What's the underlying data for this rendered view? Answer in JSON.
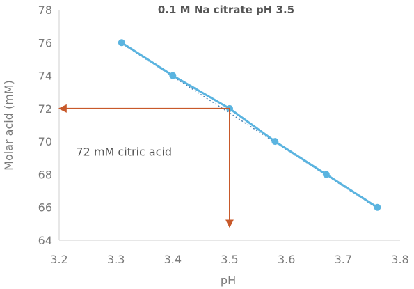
{
  "chart_data": {
    "type": "line",
    "title": "0.1 M Na citrate pH 3.5",
    "xlabel": "pH",
    "ylabel": "Molar acid (mM)",
    "xlim": [
      3.2,
      3.8
    ],
    "ylim": [
      64,
      78
    ],
    "x_ticks": [
      "3.2",
      "3.3",
      "3.4",
      "3.5",
      "3.6",
      "3.7",
      "3.8"
    ],
    "y_ticks": [
      "64",
      "66",
      "68",
      "70",
      "72",
      "74",
      "76",
      "78"
    ],
    "grid": false,
    "legend": "none",
    "series": [
      {
        "x": [
          3.31,
          3.4,
          3.5,
          3.58,
          3.67,
          3.76
        ],
        "y": [
          76,
          74,
          72,
          70,
          68,
          66
        ],
        "color": "#5ab4e0",
        "marker": "circle",
        "trendline": {
          "style": "dotted",
          "x": [
            3.31,
            3.76
          ],
          "y": [
            75.95,
            65.95
          ]
        }
      }
    ],
    "annotations": [
      {
        "text": "72 mM citric acid",
        "x": 3.23,
        "y": 69.4
      }
    ],
    "arrows": [
      {
        "from": [
          3.5,
          72
        ],
        "to": [
          3.2,
          72
        ],
        "color": "#c8592a"
      },
      {
        "from": [
          3.5,
          72
        ],
        "to": [
          3.5,
          64.8
        ],
        "color": "#c8592a"
      }
    ]
  }
}
